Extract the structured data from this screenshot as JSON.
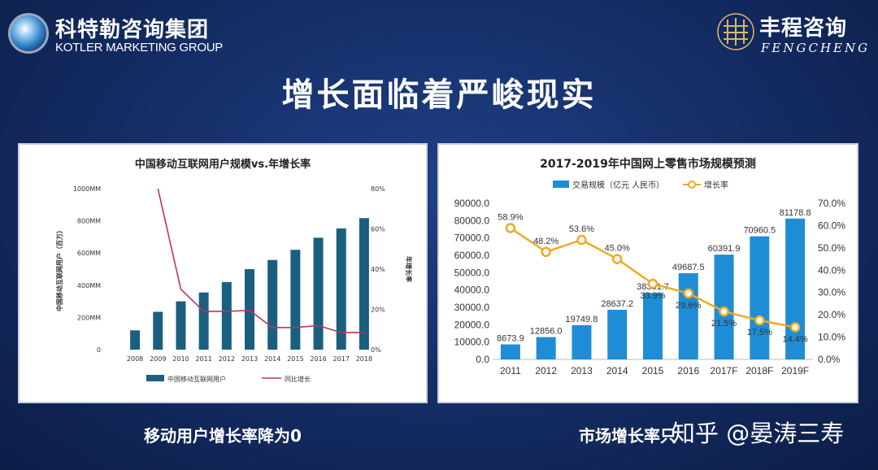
{
  "header": {
    "kotler_cn": "科特勒咨询集团",
    "kotler_en": "KOTLER MARKETING GROUP",
    "fengcheng_cn": "丰程咨询",
    "fengcheng_en": "FENGCHENG"
  },
  "page_title": "增长面临着严峻现实",
  "captions": {
    "left": "移动用户增长率降为0",
    "right": "市场增长率只"
  },
  "watermark": "知乎 @晏涛三寿",
  "colors": {
    "bar_left": "#1b5f80",
    "line_left": "#b8365a",
    "bar_right": "#1f8dd6",
    "line_right": "#f0a825",
    "background": "#152e68"
  },
  "chart_data": [
    {
      "type": "bar",
      "title": "中国移动互联网用户规模vs.年增长率",
      "categories": [
        "2008",
        "2009",
        "2010",
        "2011",
        "2012",
        "2013",
        "2014",
        "2015",
        "2016",
        "2017",
        "2018"
      ],
      "series": [
        {
          "name": "中国移动互联网用户",
          "kind": "bar",
          "axis": "left",
          "values": [
            120,
            235,
            300,
            355,
            420,
            500,
            557,
            620,
            695,
            753,
            817
          ]
        },
        {
          "name": "同比增长",
          "kind": "line",
          "axis": "right",
          "values": [
            null,
            80,
            30,
            19,
            19,
            19.5,
            11,
            11,
            12,
            8.5,
            8.5
          ]
        }
      ],
      "ylabel": "中国移动互联网用户（百万）",
      "y2label": "年增长率",
      "ylim": [
        0,
        1000
      ],
      "y2lim": [
        0,
        80
      ],
      "yticks": [
        "0",
        "200MM",
        "400MM",
        "600MM",
        "800MM",
        "1000MM"
      ],
      "y2ticks": [
        "0%",
        "20%",
        "40%",
        "60%",
        "80%"
      ],
      "legend": "bottom"
    },
    {
      "type": "bar",
      "title": "2017-2019年中国网上零售市场规模预测",
      "categories": [
        "2011",
        "2012",
        "2013",
        "2014",
        "2015",
        "2016",
        "2017F",
        "2018F",
        "2019F"
      ],
      "series": [
        {
          "name": "交易规模（亿元 人民币）",
          "kind": "bar",
          "axis": "left",
          "values": [
            8673.9,
            12856.0,
            19749.8,
            28637.2,
            38351.7,
            49687.5,
            60391.9,
            70960.5,
            81178.8
          ]
        },
        {
          "name": "增长率",
          "kind": "line",
          "axis": "right",
          "values": [
            58.9,
            48.2,
            53.6,
            45.0,
            33.9,
            29.6,
            21.5,
            17.5,
            14.4
          ]
        }
      ],
      "bar_labels": [
        "8673.9",
        "12856.0",
        "19749.8",
        "28637.2",
        "38351.7",
        "49687.5",
        "60391.9",
        "70960.5",
        "81178.8"
      ],
      "line_labels": [
        "58.9%",
        "48.2%",
        "53.6%",
        "45.0%",
        "33.9%",
        "29.6%",
        "21.5%",
        "17.5%",
        "14.4%"
      ],
      "ylim": [
        0,
        90000
      ],
      "y2lim": [
        0,
        70
      ],
      "yticks": [
        "0.0",
        "10000.0",
        "20000.0",
        "30000.0",
        "40000.0",
        "50000.0",
        "60000.0",
        "70000.0",
        "80000.0",
        "90000.0"
      ],
      "y2ticks": [
        "0.0%",
        "10.0%",
        "20.0%",
        "30.0%",
        "40.0%",
        "50.0%",
        "60.0%",
        "70.0%"
      ],
      "legend": "top"
    }
  ]
}
